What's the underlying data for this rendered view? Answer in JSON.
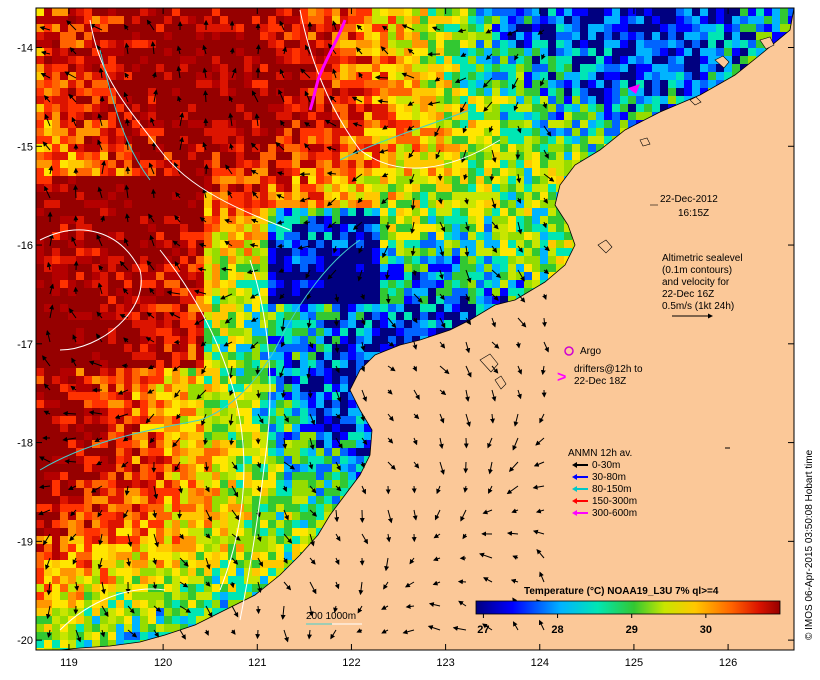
{
  "map": {
    "lon_axis": {
      "ticks": [
        "119",
        "120",
        "121",
        "122",
        "123",
        "124",
        "125",
        "126"
      ],
      "range": [
        118.65,
        126.7
      ]
    },
    "lat_axis": {
      "ticks": [
        "-14",
        "-15",
        "-16",
        "-17",
        "-18",
        "-19",
        "-20"
      ],
      "range": [
        -20.1,
        -13.6
      ]
    },
    "date_label": {
      "line1": "22-Dec-2012",
      "line2": "16:15Z"
    },
    "altimetry_note": {
      "line1": "Altimetric sealevel",
      "line2": "(0.1m contours)",
      "line3": "and velocity for",
      "line4": "22-Dec 16Z",
      "line5": "0.5m/s (1kt 24h)"
    },
    "argo_label": "Argo",
    "drifters_label": {
      "line1": "drifters@12h to",
      "line2": "22-Dec 18Z"
    },
    "anmn": {
      "title": "ANMN 12h av.",
      "items": [
        {
          "label": "0-30m",
          "color": "#000000"
        },
        {
          "label": "30-80m",
          "color": "#0000ff"
        },
        {
          "label": "80-150m",
          "color": "#00c8c8"
        },
        {
          "label": "150-300m",
          "color": "#ff0000"
        },
        {
          "label": "300-600m",
          "color": "#ff00ff"
        }
      ]
    },
    "isobath_label": "200  1000m",
    "colorbar": {
      "title": "Temperature (°C) NOAA19_L3U 7% ql>=4",
      "ticks": [
        "27",
        "28",
        "29",
        "30"
      ],
      "range": [
        26.9,
        31.0
      ]
    },
    "credit": "© IMOS 06-Apr-2015 03:50:08 Hobart time",
    "colors": {
      "land": "#fbc898",
      "argo": "#d000d0",
      "drifter": "#ff00ff"
    }
  }
}
